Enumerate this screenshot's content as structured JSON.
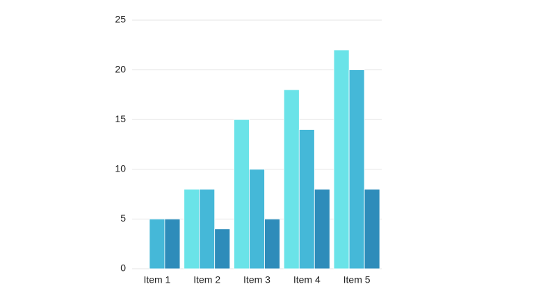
{
  "chart_data": {
    "type": "bar",
    "categories": [
      "Item 1",
      "Item 2",
      "Item 3",
      "Item 4",
      "Item 5"
    ],
    "series": [
      {
        "color": "#6ae3e8",
        "values": [
          0,
          8,
          15,
          18,
          22
        ]
      },
      {
        "color": "#45b8d8",
        "values": [
          5,
          8,
          10,
          14,
          20
        ]
      },
      {
        "color": "#2e8cba",
        "values": [
          5,
          4,
          5,
          8,
          8
        ]
      }
    ],
    "ylim": [
      0,
      25
    ],
    "yticks": [
      0,
      5,
      10,
      15,
      20,
      25
    ],
    "grid": true
  }
}
